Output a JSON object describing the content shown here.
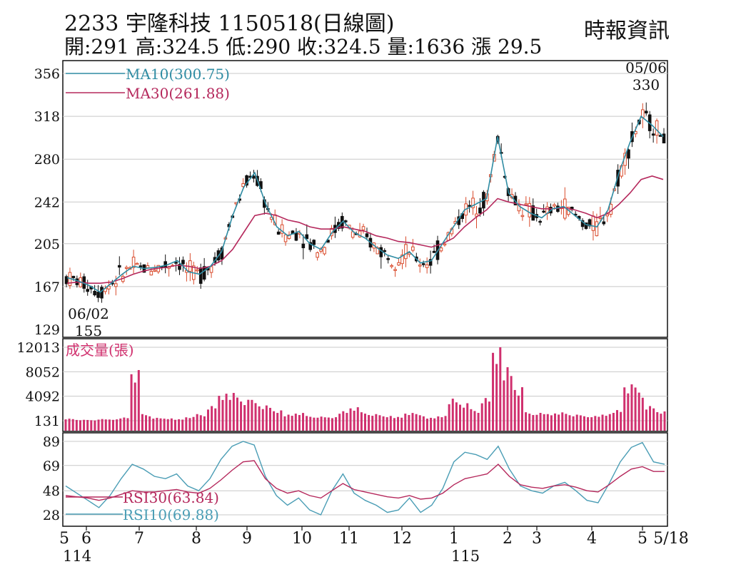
{
  "header": {
    "title": "2233  宇隆科技 1150518(日線圖)",
    "source": "時報資訊",
    "stats": "開:291 高:324.5 低:290 收:324.5 量:1636 漲 29.5"
  },
  "colors": {
    "up": "#d94a2b",
    "down": "#111111",
    "ma10": "#2f8ca3",
    "ma30": "#b5285c",
    "volume": "#d0306e",
    "rsi30": "#b5285c",
    "rsi10": "#4a9db5",
    "grid": "#c8c8c8"
  },
  "chart_data": [
    {
      "type": "candlestick",
      "panel": "price",
      "y_ticks": [
        "356",
        "318",
        "280",
        "242",
        "205",
        "167",
        "129"
      ],
      "ylim": [
        129,
        356
      ],
      "x_ticks": [
        "5",
        "6",
        "7",
        "8",
        "9",
        "10",
        "11",
        "12",
        "1",
        "2",
        "3",
        "4",
        "5",
        "5/18"
      ],
      "x_year_labels": [
        "114",
        "115"
      ],
      "series": [
        {
          "name": "MA10(300.75)",
          "close": [
            175,
            172,
            168,
            162,
            170,
            178,
            185,
            183,
            184,
            186,
            190,
            180,
            178,
            185,
            198,
            230,
            255,
            268,
            240,
            220,
            212,
            216,
            205,
            200,
            215,
            225,
            215,
            210,
            202,
            195,
            192,
            198,
            188,
            190,
            205,
            220,
            235,
            240,
            245,
            300,
            250,
            238,
            232,
            228,
            236,
            238,
            230,
            222,
            220,
            235,
            268,
            295,
            318,
            310,
            300
          ]
        },
        {
          "name": "MA30(261.88)",
          "close": [
            170,
            171,
            170,
            170,
            171,
            174,
            178,
            181,
            183,
            184,
            186,
            185,
            183,
            185,
            190,
            200,
            215,
            230,
            232,
            230,
            226,
            224,
            220,
            218,
            218,
            220,
            218,
            216,
            212,
            210,
            207,
            206,
            204,
            202,
            205,
            210,
            220,
            228,
            235,
            245,
            242,
            240,
            238,
            236,
            236,
            237,
            235,
            232,
            228,
            232,
            240,
            250,
            262,
            265,
            262
          ]
        }
      ],
      "annotations": [
        {
          "label": "05/06",
          "value": "330"
        },
        {
          "label": "06/02",
          "value": "155"
        }
      ]
    },
    {
      "type": "bar",
      "panel": "volume",
      "title": "成交量(張)",
      "y_ticks": [
        "12013",
        "8052",
        "4092",
        "131"
      ],
      "ylim": [
        131,
        12013
      ],
      "values": [
        500,
        300,
        250,
        400,
        350,
        700,
        9000,
        1200,
        600,
        500,
        400,
        800,
        1200,
        2500,
        4500,
        5000,
        3800,
        3500,
        2600,
        1800,
        1200,
        1500,
        900,
        800,
        700,
        1800,
        2500,
        1500,
        1200,
        900,
        800,
        1500,
        1200,
        600,
        900,
        4000,
        3200,
        2000,
        3800,
        12013,
        9500,
        6000,
        1500,
        1400,
        1300,
        1600,
        1200,
        1000,
        900,
        1200,
        2000,
        6500,
        5500,
        2500,
        1636
      ]
    },
    {
      "type": "line",
      "panel": "rsi",
      "y_ticks": [
        "89",
        "69",
        "48",
        "28"
      ],
      "ylim": [
        28,
        89
      ],
      "series": [
        {
          "name": "RSI30(63.84)",
          "values": [
            44,
            43,
            42,
            40,
            42,
            45,
            48,
            47,
            47,
            48,
            49,
            47,
            46,
            50,
            57,
            65,
            72,
            73,
            58,
            50,
            46,
            48,
            44,
            42,
            48,
            54,
            49,
            47,
            45,
            43,
            42,
            44,
            41,
            42,
            46,
            53,
            58,
            60,
            62,
            70,
            60,
            53,
            51,
            50,
            52,
            53,
            51,
            48,
            47,
            53,
            60,
            66,
            68,
            64,
            64
          ]
        },
        {
          "name": "RSI10(69.88)",
          "values": [
            52,
            46,
            40,
            34,
            44,
            58,
            70,
            66,
            60,
            58,
            62,
            52,
            48,
            58,
            74,
            85,
            89,
            86,
            60,
            44,
            36,
            42,
            32,
            28,
            48,
            62,
            46,
            40,
            36,
            30,
            32,
            42,
            30,
            36,
            50,
            72,
            80,
            78,
            74,
            85,
            66,
            52,
            48,
            46,
            52,
            55,
            48,
            40,
            38,
            54,
            72,
            84,
            88,
            72,
            70
          ]
        }
      ]
    }
  ]
}
